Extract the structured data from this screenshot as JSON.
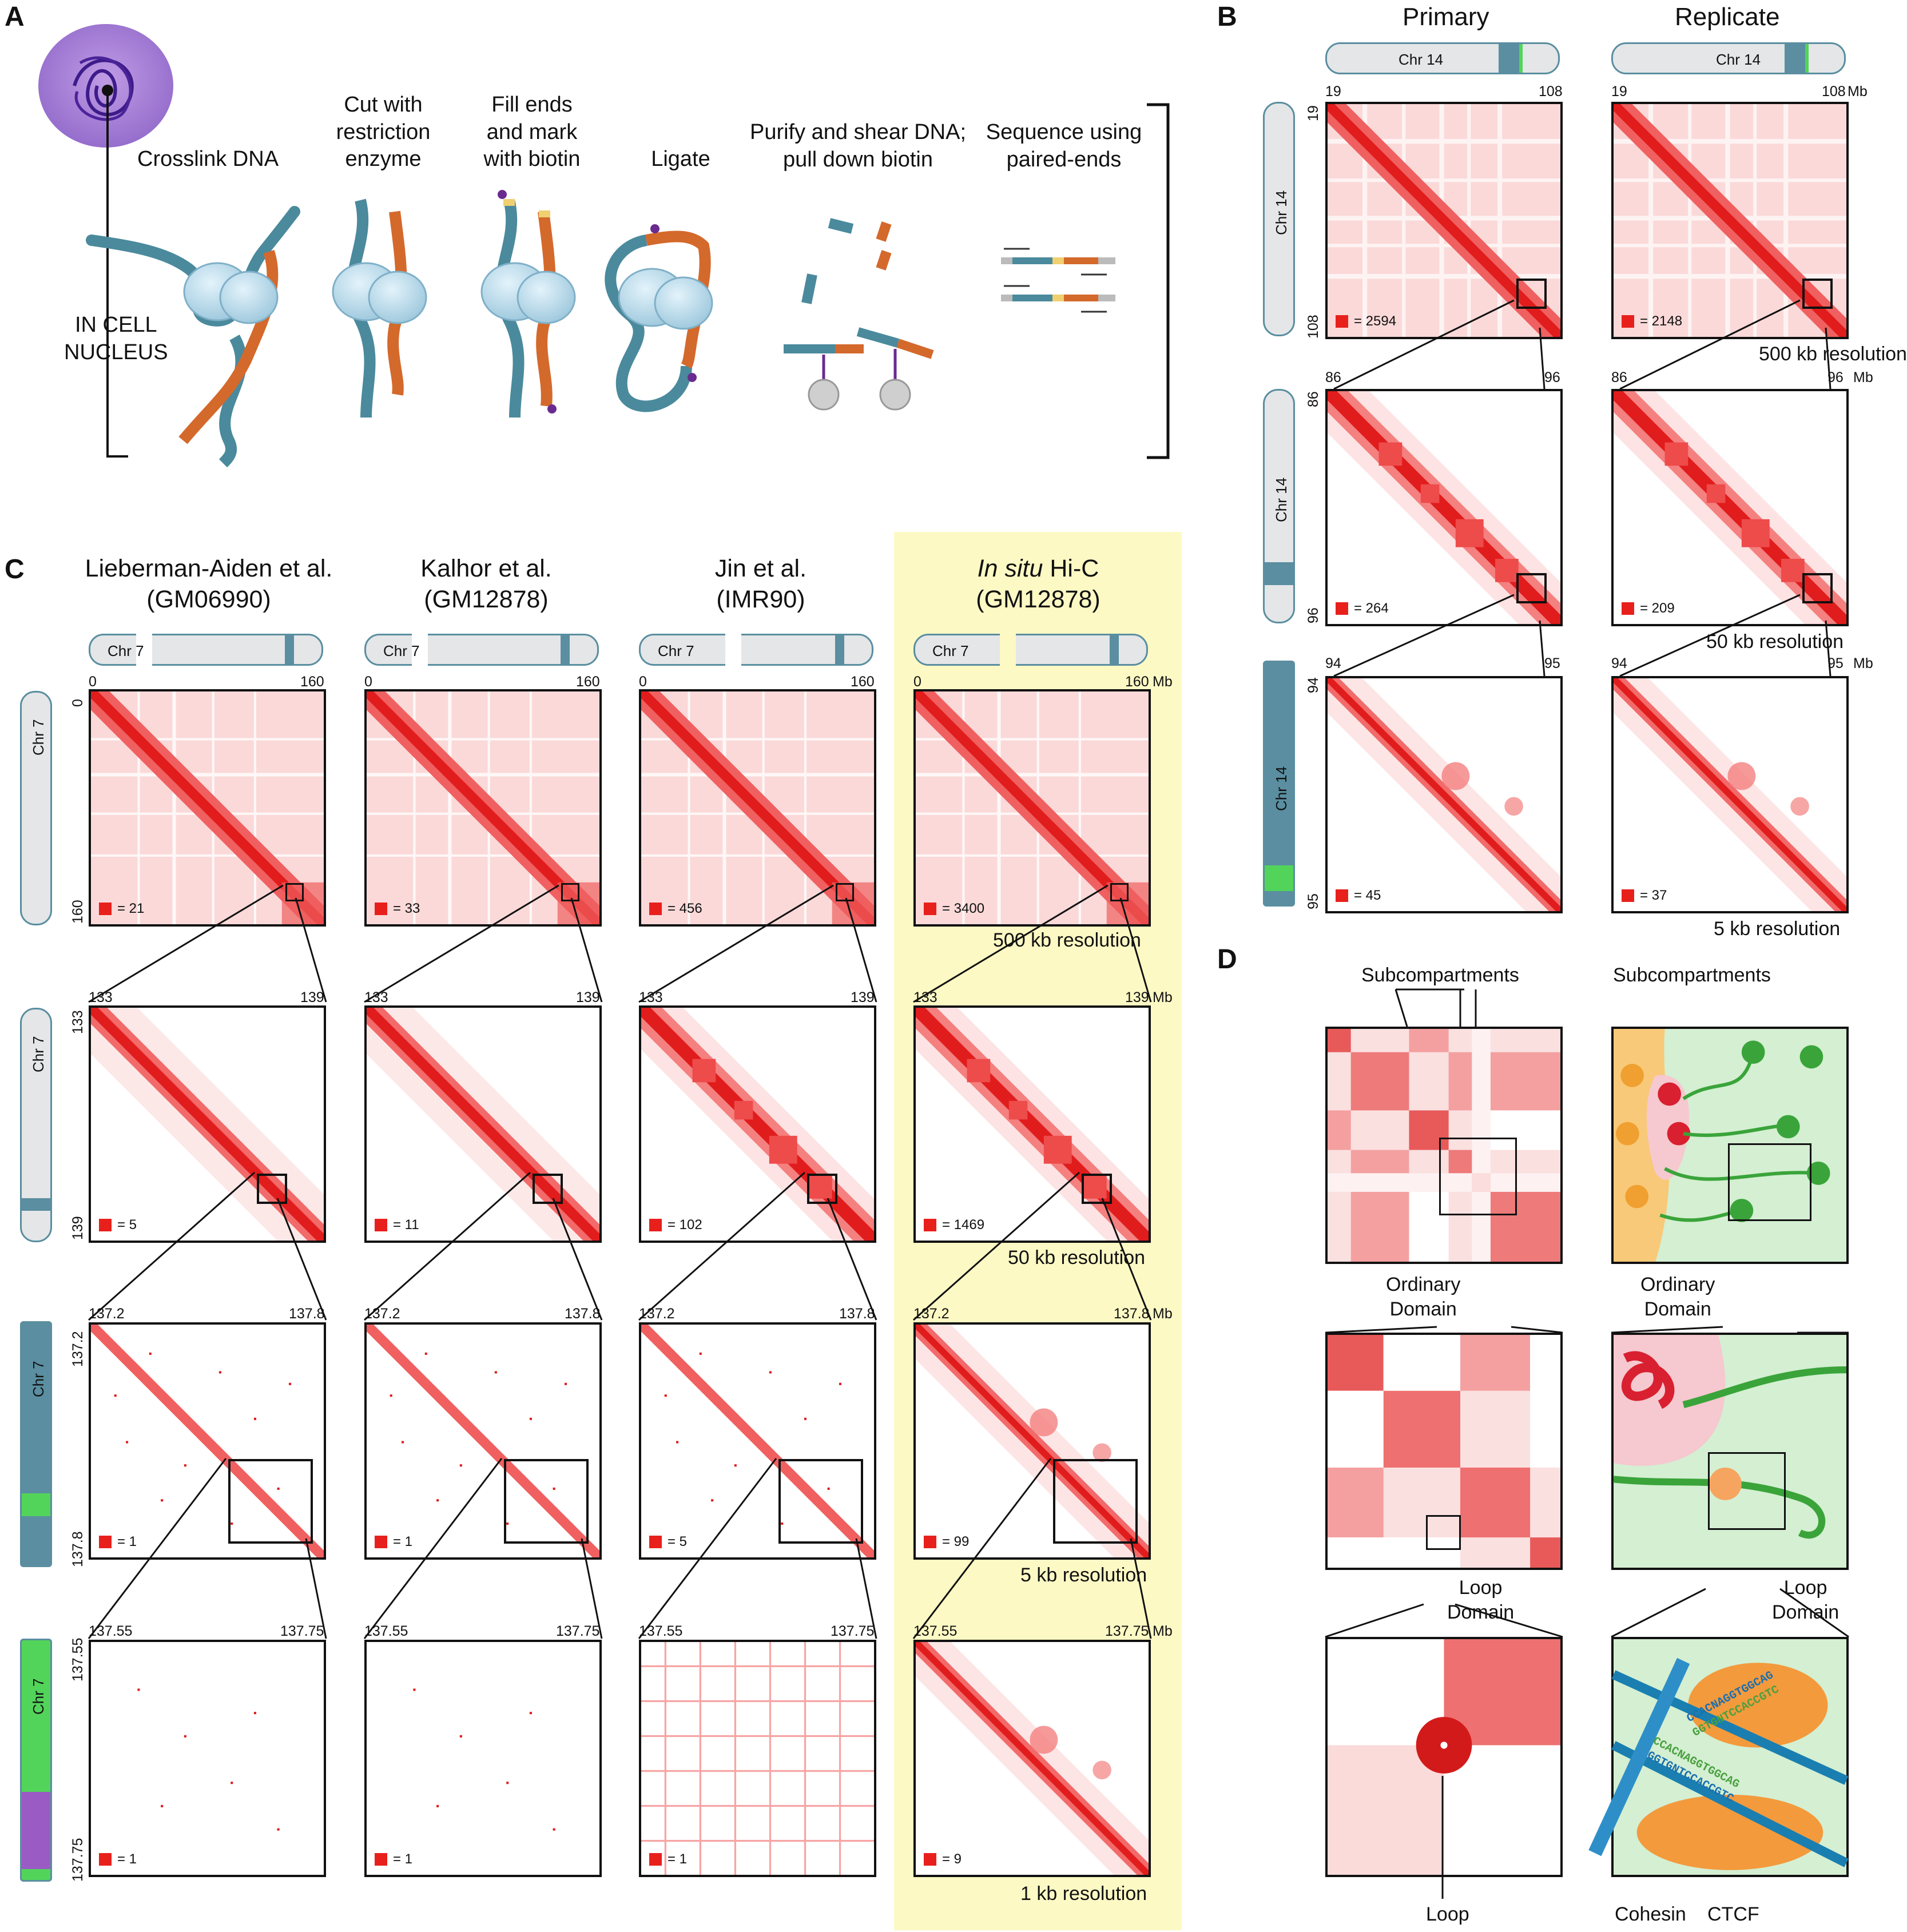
{
  "panels": {
    "a": {
      "letter": "A"
    },
    "b": {
      "letter": "B"
    },
    "c": {
      "letter": "C"
    },
    "d": {
      "letter": "D"
    }
  },
  "panel_a": {
    "cell_label_line1": "IN CELL",
    "cell_label_line2": "NUCLEUS",
    "steps": [
      "Crosslink DNA",
      "Cut with\nrestriction\nenzyme",
      "Fill ends\nand mark\nwith biotin",
      "Ligate",
      "Purify and shear DNA;\npull down biotin",
      "Sequence using\npaired-ends"
    ]
  },
  "panel_b": {
    "col_titles": [
      "Primary",
      "Replicate"
    ],
    "chromosome": "Chr 14",
    "rows": [
      {
        "start": "19",
        "end": "108",
        "unit": "Mb",
        "legend": [
          "= 2594",
          "= 2148"
        ],
        "resolution": "500 kb resolution"
      },
      {
        "start": "86",
        "end": "96",
        "unit": "Mb",
        "legend": [
          "= 264",
          "= 209"
        ],
        "resolution": "50 kb resolution"
      },
      {
        "start": "94",
        "end": "95",
        "unit": "Mb",
        "legend": [
          "= 45",
          "= 37"
        ],
        "resolution": "5 kb resolution"
      }
    ]
  },
  "panel_c": {
    "col_titles": [
      {
        "line1": "Lieberman-Aiden et al.",
        "line2": "(GM06990)"
      },
      {
        "line1": "Kalhor et al.",
        "line2": "(GM12878)"
      },
      {
        "line1": "Jin et al.",
        "line2": "(IMR90)"
      },
      {
        "line1_italic": "In situ",
        "line1_rest": " Hi-C",
        "line2": "(GM12878)"
      }
    ],
    "chromosome": "Chr 7",
    "rows": [
      {
        "start": "0",
        "end": "160",
        "unit": "Mb",
        "legend": [
          "= 21",
          "= 33",
          "= 456",
          "= 3400"
        ],
        "resolution": "500 kb resolution"
      },
      {
        "start": "133",
        "end": "139",
        "unit": "Mb",
        "legend": [
          "= 5",
          "= 11",
          "= 102",
          "= 1469"
        ],
        "resolution": "50 kb resolution"
      },
      {
        "start": "137.2",
        "end": "137.8",
        "unit": "Mb",
        "legend": [
          "= 1",
          "= 1",
          "= 5",
          "= 99"
        ],
        "resolution": "5 kb resolution"
      },
      {
        "start": "137.55",
        "end": "137.75",
        "unit": "Mb",
        "legend": [
          "= 1",
          "= 1",
          "= 1",
          "= 9"
        ],
        "resolution": "1 kb resolution"
      }
    ]
  },
  "panel_d": {
    "subcompartments": "Subcompartments",
    "ordinary_domain": "Ordinary\nDomain",
    "loop_domain": "Loop\nDomain",
    "loop": "Loop",
    "cohesin": "Cohesin",
    "ctcf": "CTCF",
    "motif_top_1": "CCACNAGGTGGCAG",
    "motif_top_2": "GGTGNTCCACCGTC",
    "motif_bot_1": "CCACNAGGTGGCAG",
    "motif_bot_2": "GGTGNTCCACCGTC"
  },
  "colors": {
    "heat_red": "#e8201c",
    "chrom_blue": "#5a8ea0",
    "highlight_green": "#52d45a",
    "highlight_purple": "#9a5cc4",
    "yellow_highlight": "#fdf9c4"
  }
}
